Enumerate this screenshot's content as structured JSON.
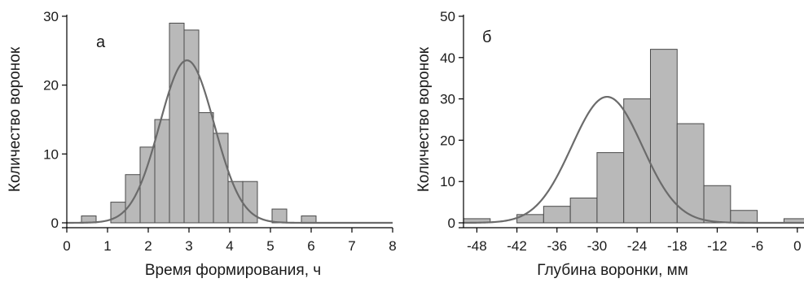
{
  "colors": {
    "bar_fill": "#b9b9b9",
    "bar_stroke": "#4a4a4a",
    "curve": "#6b6b6b",
    "axis": "#000000"
  },
  "chart_data": [
    {
      "type": "bar",
      "panel_label": "а",
      "xlabel": "Время формирования, ч",
      "ylabel": "Количество воронок",
      "xlim": [
        0,
        8
      ],
      "ylim": [
        0,
        30
      ],
      "xticks": [
        0,
        1,
        2,
        3,
        4,
        5,
        6,
        7,
        8
      ],
      "yticks": [
        0,
        10,
        20,
        30
      ],
      "bin_width": 0.36,
      "bins": [
        {
          "x": 0.54,
          "count": 1
        },
        {
          "x": 1.26,
          "count": 3
        },
        {
          "x": 1.62,
          "count": 7
        },
        {
          "x": 1.98,
          "count": 11
        },
        {
          "x": 2.34,
          "count": 15
        },
        {
          "x": 2.7,
          "count": 29
        },
        {
          "x": 3.06,
          "count": 28
        },
        {
          "x": 3.42,
          "count": 16
        },
        {
          "x": 3.78,
          "count": 13
        },
        {
          "x": 4.14,
          "count": 6
        },
        {
          "x": 4.5,
          "count": 6
        },
        {
          "x": 5.22,
          "count": 2
        },
        {
          "x": 5.94,
          "count": 1
        }
      ],
      "fit": {
        "type": "normal",
        "mean": 2.95,
        "sd": 0.67,
        "peak": 23.6
      }
    },
    {
      "type": "bar",
      "panel_label": "б",
      "xlabel": "Глубина воронки, мм",
      "ylabel": "Количество воронок",
      "xlim": [
        -50,
        1
      ],
      "ylim": [
        0,
        50
      ],
      "xticks": [
        -48,
        -42,
        -36,
        -30,
        -24,
        -18,
        -12,
        -6,
        0
      ],
      "yticks": [
        0,
        10,
        20,
        30,
        40,
        50
      ],
      "bin_width": 4,
      "bins": [
        {
          "x": -48,
          "count": 1
        },
        {
          "x": -40,
          "count": 2
        },
        {
          "x": -36,
          "count": 4
        },
        {
          "x": -32,
          "count": 6
        },
        {
          "x": -28,
          "count": 17
        },
        {
          "x": -24,
          "count": 30
        },
        {
          "x": -20,
          "count": 42
        },
        {
          "x": -16,
          "count": 24
        },
        {
          "x": -12,
          "count": 9
        },
        {
          "x": -8,
          "count": 3
        },
        {
          "x": 0,
          "count": 1
        }
      ],
      "fit": {
        "type": "normal",
        "mean": -28.5,
        "sd": 5.3,
        "peak": 30.5
      }
    }
  ]
}
